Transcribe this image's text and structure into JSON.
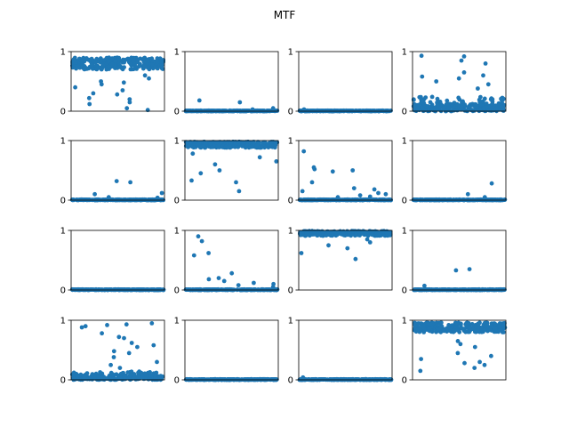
{
  "figure": {
    "title": "MTF"
  },
  "chart_data": {
    "type": "scatter",
    "title": "MTF",
    "rows": 4,
    "cols": 4,
    "ylim": [
      0,
      1
    ],
    "yticks": [
      0,
      1
    ],
    "ytick_labels": [
      "0",
      "1"
    ],
    "xticks_visible": false,
    "grid": false,
    "marker_color": "#1f77b4",
    "panels": [
      {
        "pattern": "high",
        "level": 0.8,
        "spread": 0.1,
        "outliers": [
          0.05,
          0.12,
          0.2,
          0.28,
          0.35,
          0.4,
          0.45,
          0.5,
          0.55,
          0.3,
          0.22,
          0.48,
          0.6,
          0.02,
          0.15
        ]
      },
      {
        "pattern": "zero",
        "outliers": [
          0.18,
          0.15,
          0.05,
          0.03
        ]
      },
      {
        "pattern": "zero",
        "outliers": [
          0.03
        ]
      },
      {
        "pattern": "low",
        "level": 0.08,
        "spread": 0.12,
        "outliers": [
          0.85,
          0.8,
          0.92,
          0.93,
          0.58,
          0.65,
          0.55,
          0.5,
          0.45,
          0.6,
          0.38
        ]
      },
      {
        "pattern": "zero",
        "outliers": [
          0.32,
          0.3,
          0.12,
          0.1,
          0.05,
          0.04
        ]
      },
      {
        "pattern": "high",
        "level": 0.93,
        "spread": 0.05,
        "outliers": [
          0.15,
          0.3,
          0.33,
          0.45,
          0.5,
          0.65,
          0.72,
          0.6,
          0.78
        ]
      },
      {
        "pattern": "zero",
        "outliers": [
          0.82,
          0.55,
          0.5,
          0.52,
          0.48,
          0.3,
          0.2,
          0.18,
          0.12,
          0.1,
          0.08,
          0.06,
          0.15,
          0.05
        ]
      },
      {
        "pattern": "zero",
        "outliers": [
          0.28,
          0.1,
          0.05
        ]
      },
      {
        "pattern": "zero",
        "outliers": []
      },
      {
        "pattern": "zero",
        "outliers": [
          0.9,
          0.82,
          0.62,
          0.58,
          0.28,
          0.2,
          0.15,
          0.12,
          0.1,
          0.08,
          0.05,
          0.18
        ]
      },
      {
        "pattern": "high",
        "level": 0.95,
        "spread": 0.04,
        "outliers": [
          0.62,
          0.7,
          0.75,
          0.52,
          0.8,
          0.85
        ]
      },
      {
        "pattern": "zero",
        "outliers": [
          0.33,
          0.35,
          0.07
        ]
      },
      {
        "pattern": "low",
        "level": 0.05,
        "spread": 0.07,
        "outliers": [
          0.93,
          0.9,
          0.95,
          0.92,
          0.88,
          0.78,
          0.72,
          0.7,
          0.62,
          0.58,
          0.55,
          0.48,
          0.45,
          0.38,
          0.3,
          0.25,
          0.2
        ]
      },
      {
        "pattern": "zero",
        "outliers": []
      },
      {
        "pattern": "zero",
        "outliers": [
          0.04
        ]
      },
      {
        "pattern": "high",
        "level": 0.88,
        "spread": 0.08,
        "outliers": [
          0.65,
          0.6,
          0.55,
          0.4,
          0.35,
          0.3,
          0.25,
          0.2,
          0.15,
          0.45,
          0.28
        ]
      }
    ]
  }
}
